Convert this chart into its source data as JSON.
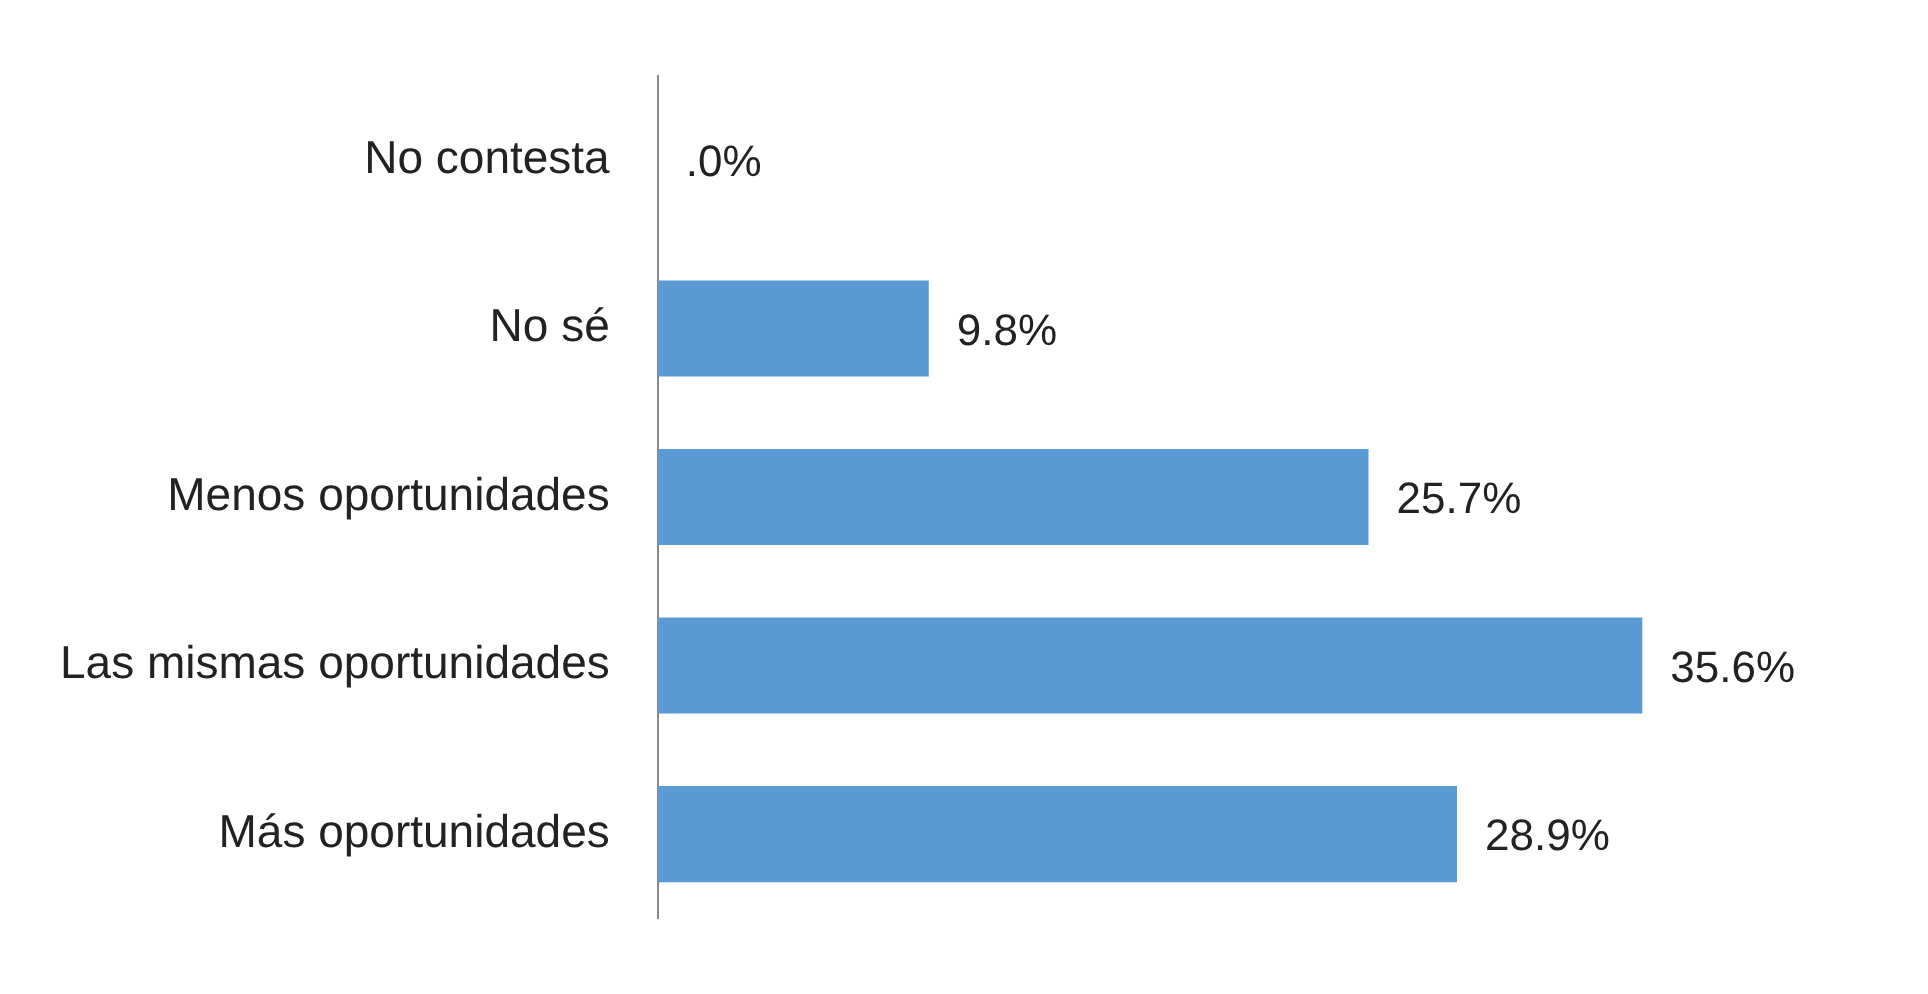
{
  "chart_data": {
    "type": "bar",
    "orientation": "horizontal",
    "categories": [
      "No contesta",
      "No sé",
      "Menos oportunidades",
      "Las mismas oportunidades",
      "Más oportunidades"
    ],
    "values": [
      0,
      9.8,
      25.7,
      35.6,
      28.9
    ],
    "value_labels": [
      ".0%",
      "9.8%",
      "25.7%",
      "35.6%",
      "28.9%"
    ],
    "color": "#5b9bd5",
    "legend": false,
    "tick_labels": "y"
  }
}
